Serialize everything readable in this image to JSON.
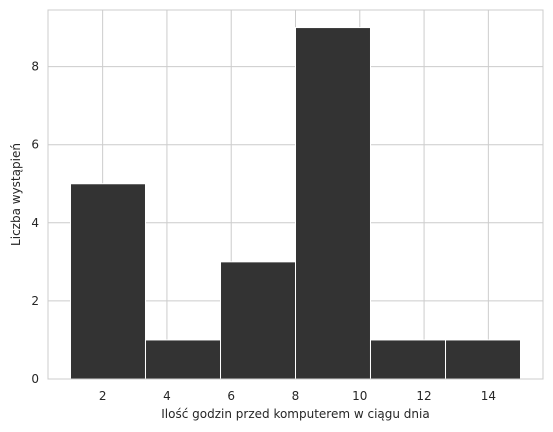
{
  "chart_data": {
    "type": "bar",
    "title": "",
    "xlabel": "Ilość godzin przed komputerem w ciągu dnia",
    "ylabel": "Liczba wystąpień",
    "bins": [
      {
        "start": 1.0,
        "end": 3.333,
        "value": 5
      },
      {
        "start": 3.333,
        "end": 5.667,
        "value": 1
      },
      {
        "start": 5.667,
        "end": 8.0,
        "value": 3
      },
      {
        "start": 8.0,
        "end": 10.333,
        "value": 9
      },
      {
        "start": 10.333,
        "end": 12.667,
        "value": 1
      },
      {
        "start": 12.667,
        "end": 15.0,
        "value": 1
      }
    ],
    "xticks": [
      2,
      4,
      6,
      8,
      10,
      12,
      14
    ],
    "yticks": [
      0,
      2,
      4,
      6,
      8
    ],
    "xlim": [
      0.3,
      15.7
    ],
    "ylim": [
      0,
      9.45
    ],
    "grid": true,
    "bar_color": "#333333",
    "bar_edge_color": "#ffffff",
    "grid_color": "#cccccc",
    "spine_color": "#cccccc"
  }
}
